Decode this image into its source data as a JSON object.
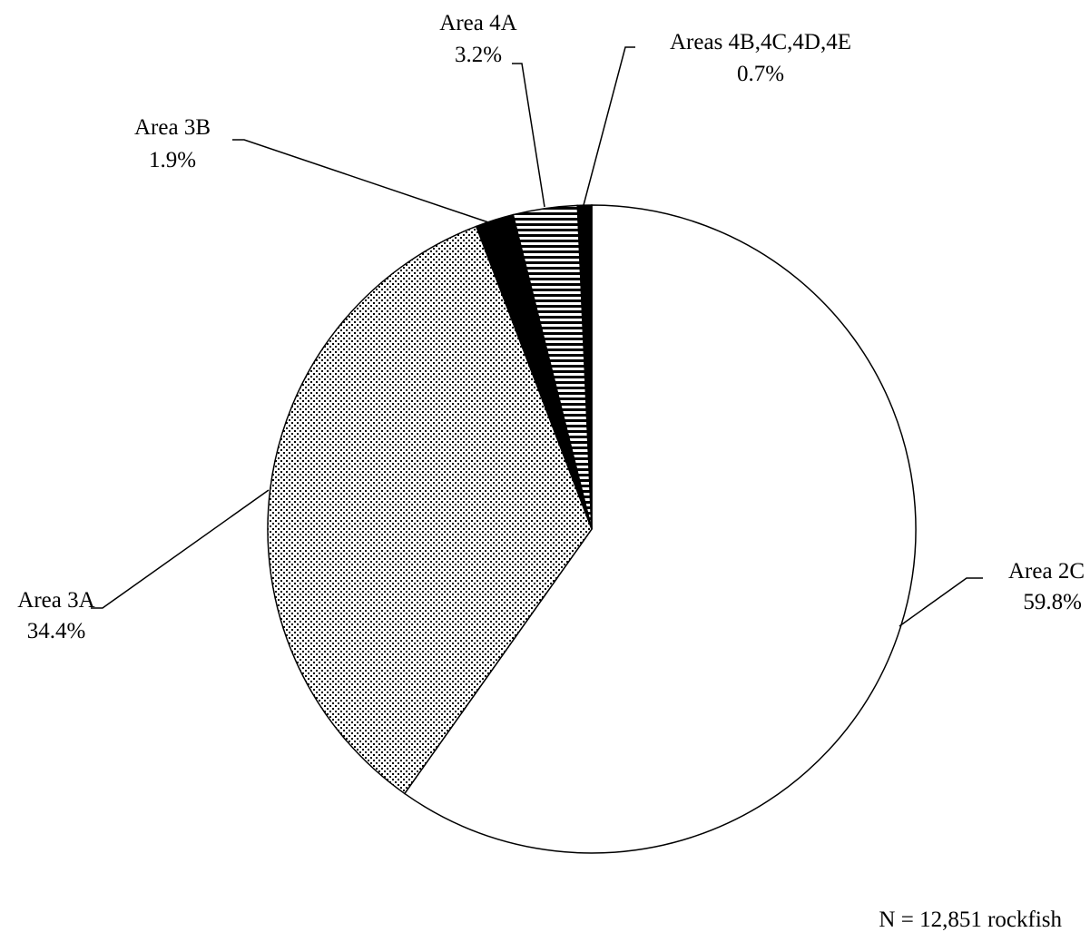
{
  "chart_data": {
    "type": "pie",
    "start": "12 o'clock",
    "direction": "clockwise",
    "slices": [
      {
        "label": "Area 2C",
        "value": 59.8,
        "value_label": "59.8%",
        "fill": "white",
        "color": "#ffffff"
      },
      {
        "label": "Area 3A",
        "value": 34.4,
        "value_label": "34.4%",
        "fill": "dotted",
        "color": "#d9d9d9"
      },
      {
        "label": "Area 3B",
        "value": 1.9,
        "value_label": "1.9%",
        "fill": "solid",
        "color": "#000000"
      },
      {
        "label": "Area 4A",
        "value": 3.2,
        "value_label": "3.2%",
        "fill": "horizontal-stripes",
        "color": "#000000"
      },
      {
        "label": "Areas 4B,4C,4D,4E",
        "value": 0.7,
        "value_label": "0.7%",
        "fill": "solid",
        "color": "#000000"
      }
    ],
    "note": "N = 12,851 rockfish"
  }
}
